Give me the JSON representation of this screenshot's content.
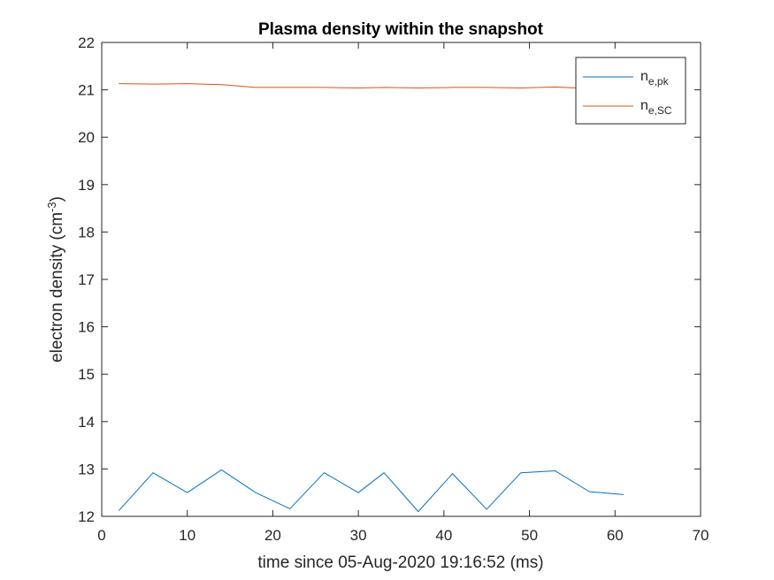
{
  "chart_data": {
    "type": "line",
    "title": "Plasma density within the snapshot",
    "xlabel": "time since 05-Aug-2020 19:16:52 (ms)",
    "ylabel": {
      "main": "electron density (cm",
      "sup": "-3",
      "close": ")"
    },
    "xlim": [
      0,
      70
    ],
    "ylim": [
      12,
      22
    ],
    "xticks": [
      0,
      10,
      20,
      30,
      40,
      50,
      60,
      70
    ],
    "yticks": [
      12,
      13,
      14,
      15,
      16,
      17,
      18,
      19,
      20,
      21,
      22
    ],
    "grid": false,
    "legend_position": "top-right",
    "series": [
      {
        "name": "n",
        "name_sub": "e,pk",
        "color": "#0072BD",
        "x": [
          2,
          6,
          10,
          14,
          18,
          22,
          26,
          30,
          33,
          37,
          41,
          45,
          49,
          53,
          57,
          61
        ],
        "y": [
          12.12,
          12.92,
          12.5,
          12.98,
          12.5,
          12.16,
          12.92,
          12.5,
          12.92,
          12.1,
          12.9,
          12.15,
          12.92,
          12.96,
          12.52,
          12.46
        ]
      },
      {
        "name": "n",
        "name_sub": "e,SC",
        "color": "#D95319",
        "x": [
          2,
          6,
          10,
          14,
          18,
          22,
          26,
          30,
          33,
          37,
          41,
          45,
          49,
          53,
          57,
          61
        ],
        "y": [
          21.13,
          21.12,
          21.13,
          21.11,
          21.05,
          21.05,
          21.05,
          21.04,
          21.05,
          21.04,
          21.05,
          21.05,
          21.04,
          21.06,
          21.03,
          21.08
        ]
      }
    ]
  }
}
